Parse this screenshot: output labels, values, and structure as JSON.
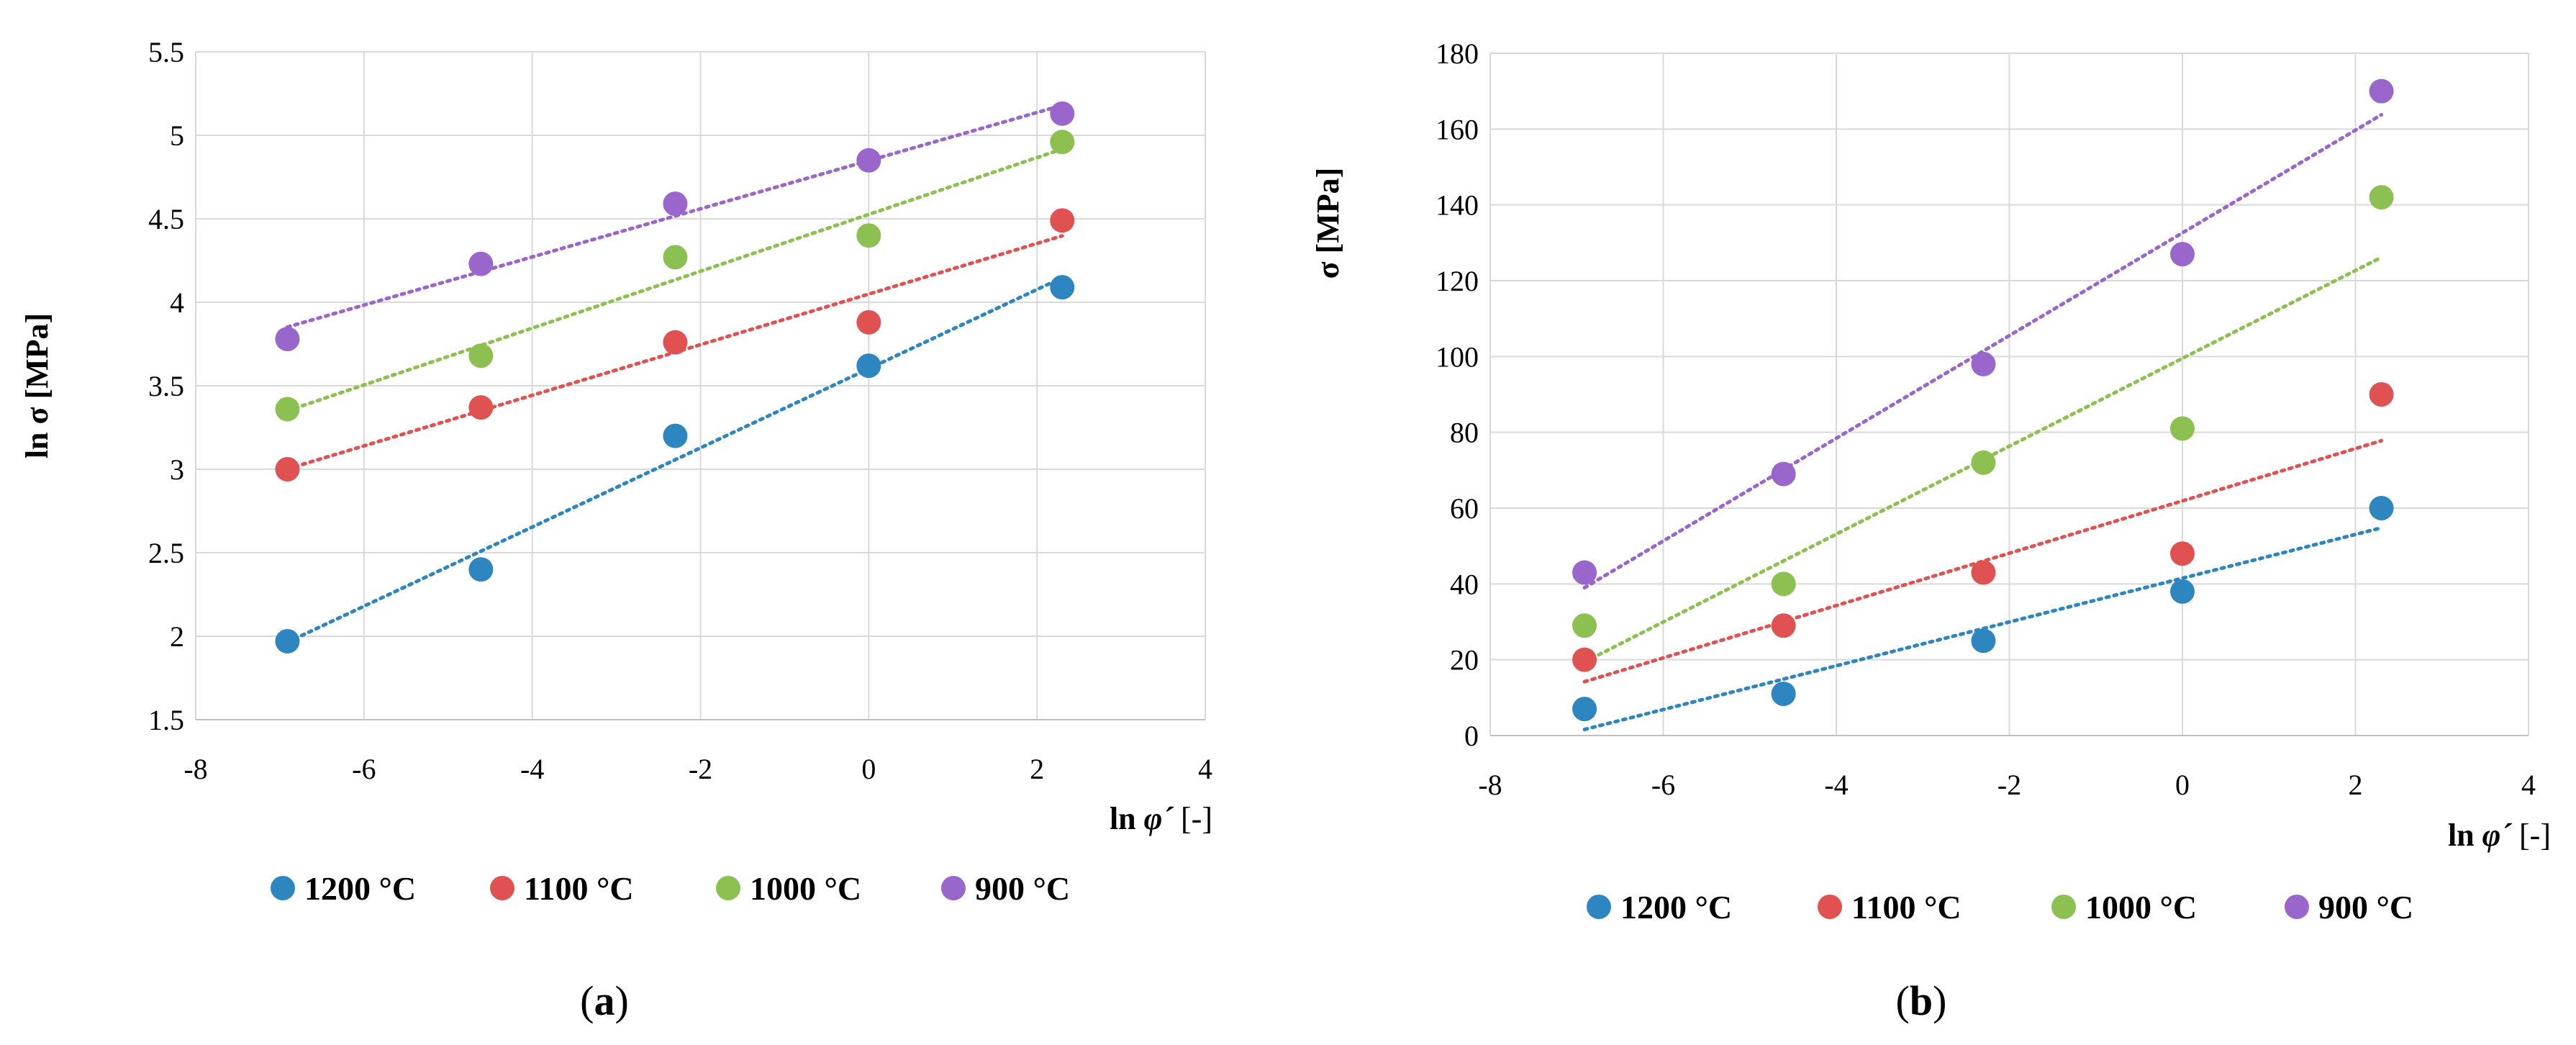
{
  "colors": {
    "s1200": "#2e86c1",
    "s1100": "#e05252",
    "s1000": "#8cc152",
    "s900": "#9966cc"
  },
  "chart_data": [
    {
      "type": "scatter",
      "panel_label": "a",
      "title": "",
      "xlabel": "ln φ´ [-]",
      "xlabel_prefix": "ln ",
      "xlabel_symbol": "φ´",
      "xlabel_suffix": " [-]",
      "ylabel": "ln σ [MPa]",
      "xlim": [
        -8,
        4
      ],
      "ylim": [
        1.5,
        5.5
      ],
      "xticks": [
        "-8",
        "-6",
        "-4",
        "-2",
        "0",
        "2",
        "4"
      ],
      "yticks": [
        "1.5",
        "2",
        "2.5",
        "3",
        "3.5",
        "4",
        "4.5",
        "5",
        "5.5"
      ],
      "x": [
        -6.91,
        -4.61,
        -2.3,
        0.0,
        2.3
      ],
      "trendline": "linear (dotted)",
      "series": [
        {
          "name": "1200 °C",
          "color_key": "s1200",
          "values": [
            1.97,
            2.4,
            3.2,
            3.62,
            4.09
          ]
        },
        {
          "name": "1100 °C",
          "color_key": "s1100",
          "values": [
            3.0,
            3.37,
            3.76,
            3.88,
            4.49
          ]
        },
        {
          "name": "1000 °C",
          "color_key": "s1000",
          "values": [
            3.36,
            3.68,
            4.27,
            4.4,
            4.96
          ]
        },
        {
          "name": "900 °C",
          "color_key": "s900",
          "values": [
            3.78,
            4.23,
            4.59,
            4.85,
            5.13
          ]
        }
      ],
      "legend": "bottom"
    },
    {
      "type": "scatter",
      "panel_label": "b",
      "title": "",
      "xlabel": "ln φ´ [-]",
      "xlabel_prefix": "ln ",
      "xlabel_symbol": "φ´",
      "xlabel_suffix": " [-]",
      "ylabel": "σ [MPa]",
      "xlim": [
        -8,
        4
      ],
      "ylim": [
        0,
        180
      ],
      "xticks": [
        "-8",
        "-6",
        "-4",
        "-2",
        "0",
        "2",
        "4"
      ],
      "yticks": [
        "0",
        "20",
        "40",
        "60",
        "80",
        "100",
        "120",
        "140",
        "160",
        "180"
      ],
      "x": [
        -6.91,
        -4.61,
        -2.3,
        0.0,
        2.3
      ],
      "trendline": "linear (dotted)",
      "series": [
        {
          "name": "1200 °C",
          "color_key": "s1200",
          "values": [
            7,
            11,
            25,
            38,
            60
          ]
        },
        {
          "name": "1100 °C",
          "color_key": "s1100",
          "values": [
            20,
            29,
            43,
            48,
            90
          ]
        },
        {
          "name": "1000 °C",
          "color_key": "s1000",
          "values": [
            29,
            40,
            72,
            81,
            142
          ]
        },
        {
          "name": "900 °C",
          "color_key": "s900",
          "values": [
            43,
            69,
            98,
            127,
            170
          ]
        }
      ],
      "legend": "bottom"
    }
  ]
}
